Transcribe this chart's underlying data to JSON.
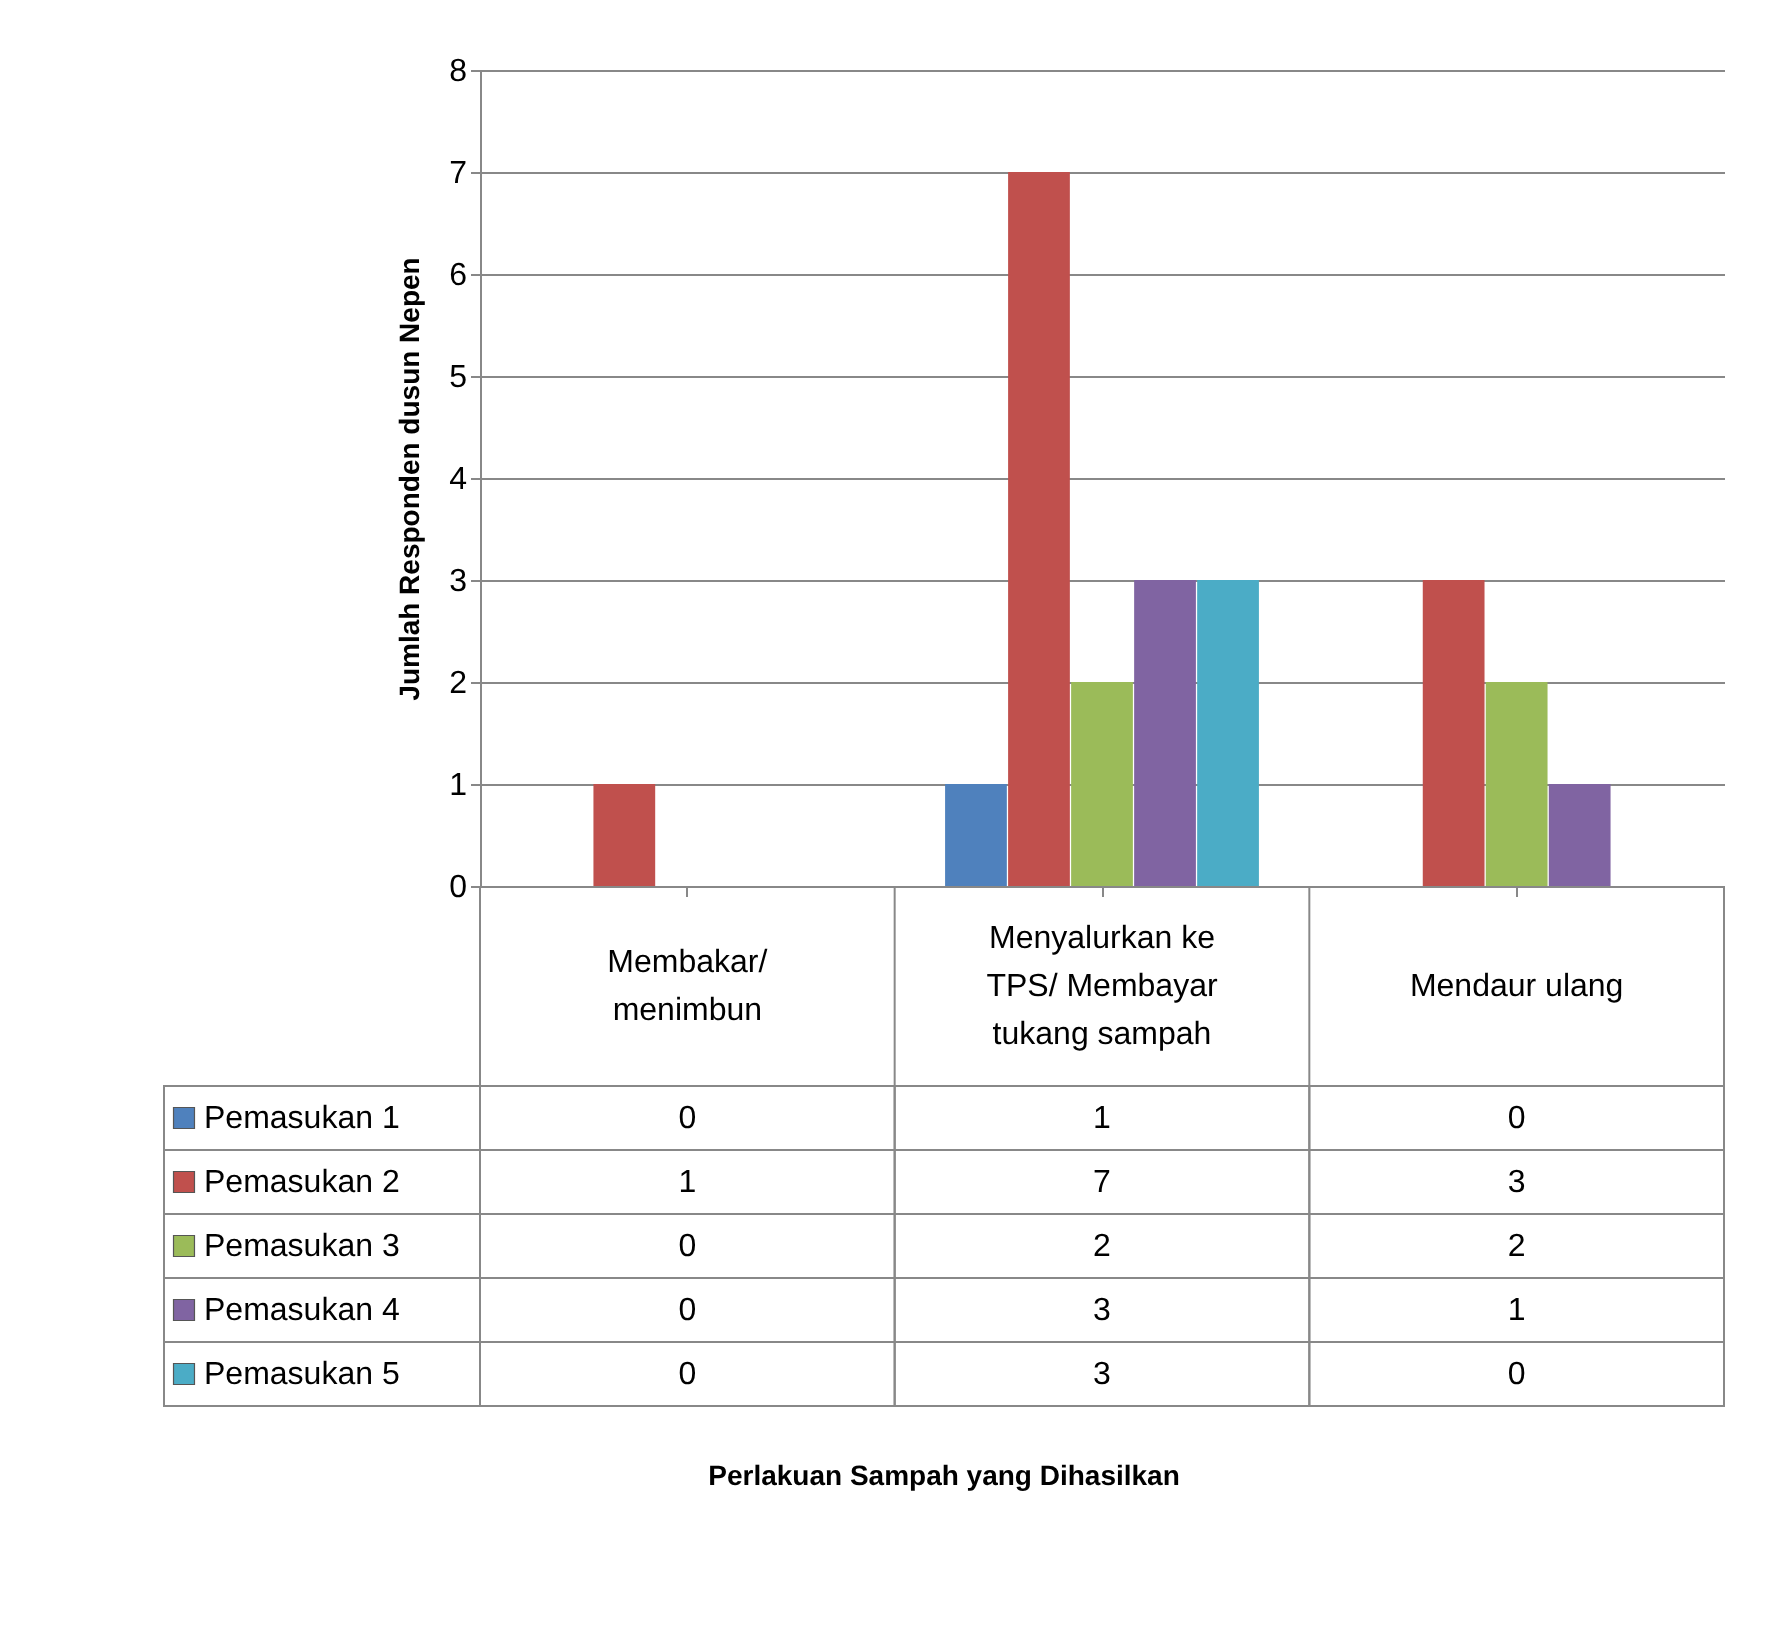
{
  "chart_data": {
    "type": "bar",
    "categories": [
      "Membakar/ menimbun",
      "Menyalurkan ke TPS/ Membayar tukang sampah",
      "Mendaur ulang"
    ],
    "series": [
      {
        "name": "Pemasukan 1",
        "color": "#4f81bd",
        "values": [
          0,
          1,
          0
        ]
      },
      {
        "name": "Pemasukan 2",
        "color": "#c0504d",
        "values": [
          1,
          7,
          3
        ]
      },
      {
        "name": "Pemasukan 3",
        "color": "#9bbb59",
        "values": [
          0,
          2,
          2
        ]
      },
      {
        "name": "Pemasukan 4",
        "color": "#8064a2",
        "values": [
          0,
          3,
          1
        ]
      },
      {
        "name": "Pemasukan 5",
        "color": "#4bacc6",
        "values": [
          0,
          3,
          0
        ]
      }
    ],
    "annotations": [
      "Perlakuan Sampah yang Dihasilkan"
    ],
    "ylabel": "Jumlah Responden dusun Nepen",
    "ylim": [
      0,
      8
    ],
    "yticks": [
      0,
      1,
      2,
      3,
      4,
      5,
      6,
      7,
      8
    ],
    "grid": "y",
    "legend": "bottom left",
    "data_labels": true
  }
}
